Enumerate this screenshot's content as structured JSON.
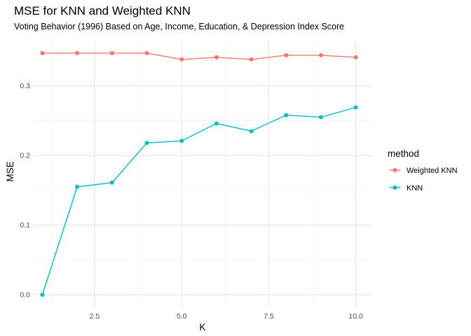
{
  "chart_data": {
    "type": "line",
    "title": "MSE for KNN and Weighted KNN",
    "subtitle": "Voting Behavior (1996) Based on Age, Income, Education, & Depression Index Score",
    "xlabel": "K",
    "ylabel": "MSE",
    "xlim": [
      0.75,
      10.45
    ],
    "ylim": [
      -0.017,
      0.364
    ],
    "x_ticks": [
      2.5,
      5.0,
      7.5,
      10.0
    ],
    "x_tick_labels": [
      "2.5",
      "5.0",
      "7.5",
      "10.0"
    ],
    "y_ticks": [
      0.0,
      0.1,
      0.2,
      0.3
    ],
    "y_tick_labels": [
      "0.0",
      "0.1",
      "0.2",
      "0.3"
    ],
    "grid": true,
    "legend_title": "method",
    "legend_position": "right",
    "x": [
      1,
      2,
      3,
      4,
      5,
      6,
      7,
      8,
      9,
      10
    ],
    "series": [
      {
        "name": "Weighted KNN",
        "color": "#F8766D",
        "values": [
          0.347,
          0.347,
          0.347,
          0.347,
          0.338,
          0.341,
          0.338,
          0.344,
          0.344,
          0.341
        ]
      },
      {
        "name": "KNN",
        "color": "#00BFC4",
        "values": [
          0.0,
          0.155,
          0.161,
          0.218,
          0.221,
          0.246,
          0.235,
          0.258,
          0.255,
          0.269
        ]
      }
    ]
  }
}
